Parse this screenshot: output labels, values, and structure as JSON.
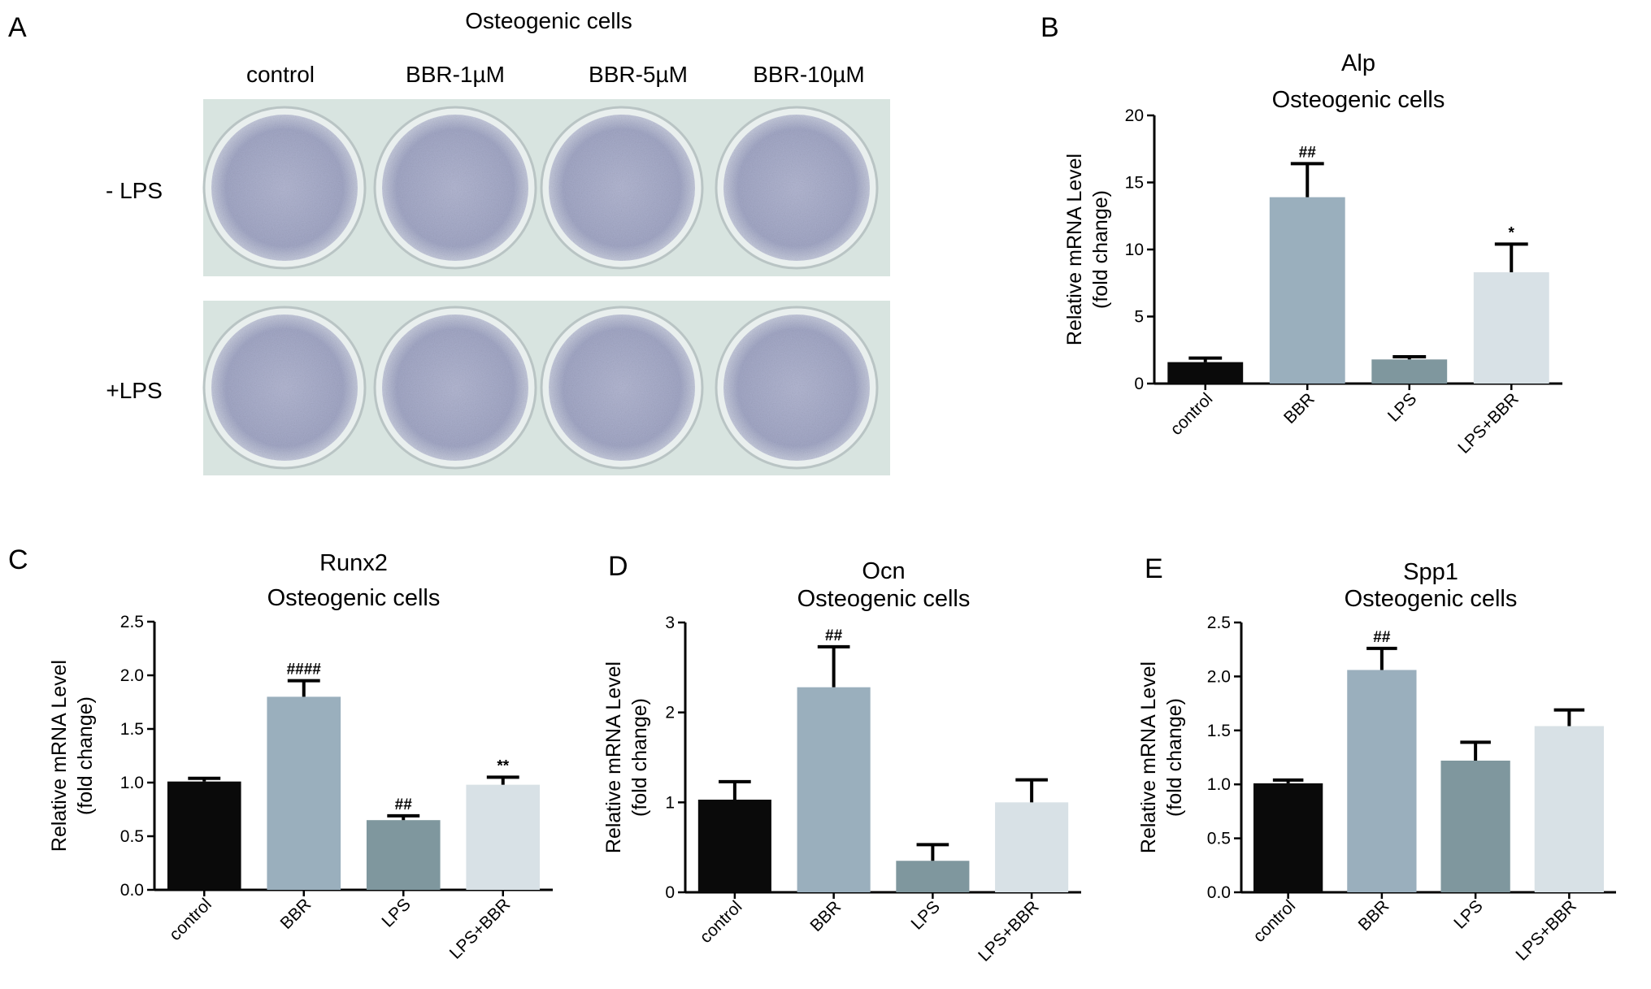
{
  "figure": {
    "panel_a": {
      "letter": "A",
      "header": "Osteogenic cells",
      "columns": [
        "control",
        "BBR-1µM",
        "BBR-5µM",
        "BBR-10µM"
      ],
      "rows": [
        "- LPS",
        "+LPS"
      ]
    }
  },
  "colors": {
    "control": "#0a0a0a",
    "BBR": "#9aafbd",
    "LPS": "#7f979e",
    "LPS+BBR": "#d8e1e6",
    "well_stain": "#a8acc8",
    "plate_bg": "#d8e4e0"
  },
  "chart_data": [
    {
      "panel": "B",
      "type": "bar",
      "title": [
        "Alp",
        "Osteogenic cells"
      ],
      "ylabel": [
        "Relative mRNA Level",
        "(fold change)"
      ],
      "categories": [
        "control",
        "BBR",
        "LPS",
        "LPS+BBR"
      ],
      "values": [
        1.6,
        13.9,
        1.8,
        8.3
      ],
      "errors": [
        0.3,
        2.5,
        0.2,
        2.1
      ],
      "annotations": [
        "",
        "##",
        "",
        "*"
      ],
      "ylim": [
        0,
        20
      ],
      "yticks": [
        0,
        5,
        10,
        15,
        20
      ],
      "ytick_labels": [
        "0",
        "5",
        "10",
        "15",
        "20"
      ]
    },
    {
      "panel": "C",
      "type": "bar",
      "title": [
        "Runx2",
        "Osteogenic cells"
      ],
      "ylabel": [
        "Relative mRNA Level",
        "(fold change)"
      ],
      "categories": [
        "control",
        "BBR",
        "LPS",
        "LPS+BBR"
      ],
      "values": [
        1.01,
        1.8,
        0.65,
        0.98
      ],
      "errors": [
        0.03,
        0.15,
        0.04,
        0.07
      ],
      "annotations": [
        "",
        "####",
        "##",
        "**"
      ],
      "ylim": [
        0,
        2.5
      ],
      "yticks": [
        0,
        0.5,
        1.0,
        1.5,
        2.0,
        2.5
      ],
      "ytick_labels": [
        "0.0",
        "0.5",
        "1.0",
        "1.5",
        "2.0",
        "2.5"
      ]
    },
    {
      "panel": "D",
      "type": "bar",
      "title": [
        "Ocn",
        "Osteogenic cells"
      ],
      "ylabel": [
        "Relative mRNA Level",
        "(fold change)"
      ],
      "categories": [
        "control",
        "BBR",
        "LPS",
        "LPS+BBR"
      ],
      "values": [
        1.03,
        2.28,
        0.35,
        1.0
      ],
      "errors": [
        0.2,
        0.45,
        0.18,
        0.25
      ],
      "annotations": [
        "",
        "##",
        "",
        ""
      ],
      "ylim": [
        0,
        3
      ],
      "yticks": [
        0,
        1,
        2,
        3
      ],
      "ytick_labels": [
        "0",
        "1",
        "2",
        "3"
      ]
    },
    {
      "panel": "E",
      "type": "bar",
      "title": [
        "Spp1",
        "Osteogenic cells"
      ],
      "ylabel": [
        "Relative mRNA Level",
        "(fold change)"
      ],
      "categories": [
        "control",
        "BBR",
        "LPS",
        "LPS+BBR"
      ],
      "values": [
        1.01,
        2.06,
        1.22,
        1.54
      ],
      "errors": [
        0.03,
        0.2,
        0.17,
        0.15
      ],
      "annotations": [
        "",
        "##",
        "",
        ""
      ],
      "ylim": [
        0,
        2.5
      ],
      "yticks": [
        0,
        0.5,
        1.0,
        1.5,
        2.0,
        2.5
      ],
      "ytick_labels": [
        "0.0",
        "0.5",
        "1.0",
        "1.5",
        "2.0",
        "2.5"
      ]
    }
  ]
}
